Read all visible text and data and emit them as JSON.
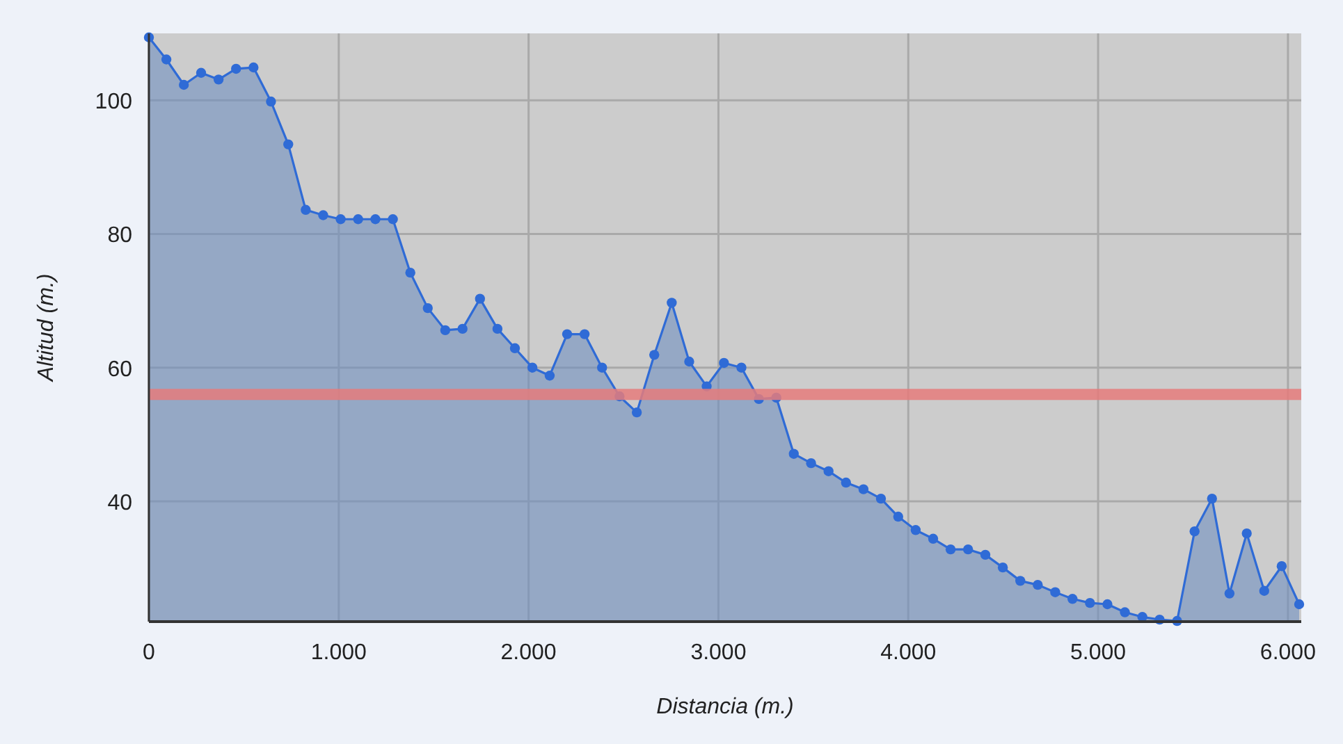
{
  "chart_data": {
    "type": "area",
    "xlabel": "Distancia (m.)",
    "ylabel": "Altitud (m.)",
    "x": [
      0,
      92,
      184,
      275,
      367,
      459,
      551,
      643,
      734,
      826,
      918,
      1010,
      1102,
      1193,
      1285,
      1377,
      1469,
      1561,
      1652,
      1744,
      1836,
      1928,
      2020,
      2111,
      2203,
      2295,
      2387,
      2479,
      2570,
      2662,
      2754,
      2846,
      2938,
      3029,
      3121,
      3213,
      3305,
      3397,
      3488,
      3580,
      3672,
      3764,
      3856,
      3947,
      4039,
      4131,
      4223,
      4315,
      4406,
      4498,
      4590,
      4682,
      4774,
      4865,
      4957,
      5049,
      5141,
      5233,
      5324,
      5416,
      5508,
      5600,
      5692,
      5783,
      5875,
      5967,
      6059
    ],
    "series": [
      {
        "color": "#2f6bd6",
        "values": [
          109.4,
          106.1,
          102.3,
          104.1,
          103.1,
          104.7,
          104.9,
          99.8,
          93.4,
          83.6,
          82.8,
          82.2,
          82.2,
          82.2,
          82.2,
          74.2,
          68.9,
          65.6,
          65.8,
          70.3,
          65.8,
          62.9,
          60.0,
          58.8,
          65.0,
          65.0,
          60.0,
          55.7,
          53.3,
          61.9,
          69.7,
          60.9,
          57.2,
          60.7,
          60.0,
          55.3,
          55.5,
          47.1,
          45.7,
          44.5,
          42.8,
          41.8,
          40.4,
          37.7,
          35.7,
          34.4,
          32.8,
          32.8,
          32.0,
          30.1,
          28.1,
          27.5,
          26.4,
          25.4,
          24.8,
          24.6,
          23.4,
          22.7,
          22.3,
          22.1,
          35.5,
          40.4,
          26.2,
          35.2,
          26.6,
          30.3,
          24.6
        ]
      }
    ],
    "xlim": [
      0,
      6070
    ],
    "xticks": [
      {
        "value": 0,
        "label": "0"
      },
      {
        "value": 1000,
        "label": "1.000"
      },
      {
        "value": 2000,
        "label": "2.000"
      },
      {
        "value": 3000,
        "label": "3.000"
      },
      {
        "value": 4000,
        "label": "4.000"
      },
      {
        "value": 5000,
        "label": "5.000"
      },
      {
        "value": 6000,
        "label": "6.000"
      }
    ],
    "ylim": [
      22,
      110
    ],
    "yticks": [
      40,
      60,
      80,
      100
    ],
    "ref_lines": [
      {
        "axis": "y",
        "value": 56,
        "color": "#e57b7b"
      }
    ],
    "grid": true,
    "marker": "circle"
  }
}
